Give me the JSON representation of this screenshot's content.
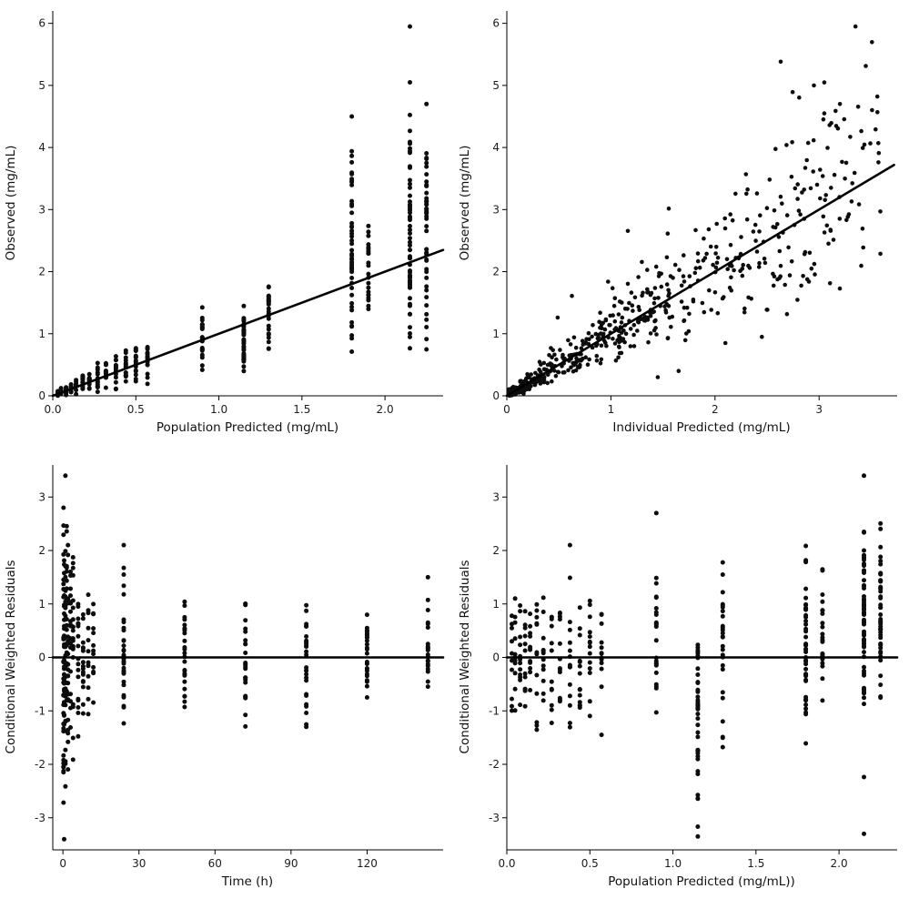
{
  "figure": {
    "background": "#ffffff",
    "point_color": "#0d0d0d",
    "line_color": "#000000",
    "axis_color": "#000000",
    "tick_color": "#1c1c1c"
  },
  "chart_data": [
    {
      "type": "scatter",
      "name": "observed-vs-population-predicted",
      "xlabel": "Population Predicted (mg/mL)",
      "ylabel": "Observed  (mg/mL)",
      "xlim": [
        0,
        2.35
      ],
      "ylim": [
        0,
        6.2
      ],
      "xticks": [
        0,
        0.5,
        1.0,
        1.5,
        2.0
      ],
      "xtick_labels": [
        "0.0",
        "0.5",
        "1.0",
        "1.5",
        "2.0"
      ],
      "yticks": [
        0,
        1,
        2,
        3,
        4,
        5,
        6
      ],
      "ytick_labels": [
        "0",
        "1",
        "2",
        "3",
        "4",
        "5",
        "6"
      ],
      "line": {
        "type": "identity",
        "x1": 0,
        "y1": 0,
        "x2": 2.35,
        "y2": 2.35
      },
      "chart": {
        "generator": "bands",
        "seed": 7,
        "point_r": 2.5,
        "bands": [
          {
            "x": 0.03,
            "n": 12,
            "mean": 0.04,
            "sd": 0.02,
            "min": 0.0,
            "max": 0.1
          },
          {
            "x": 0.05,
            "n": 14,
            "mean": 0.06,
            "sd": 0.03,
            "min": 0.0,
            "max": 0.15
          },
          {
            "x": 0.08,
            "n": 14,
            "mean": 0.09,
            "sd": 0.04,
            "min": 0.0,
            "max": 0.2
          },
          {
            "x": 0.11,
            "n": 14,
            "mean": 0.12,
            "sd": 0.05,
            "min": 0.01,
            "max": 0.25
          },
          {
            "x": 0.14,
            "n": 14,
            "mean": 0.15,
            "sd": 0.06,
            "min": 0.02,
            "max": 0.3
          },
          {
            "x": 0.18,
            "n": 14,
            "mean": 0.19,
            "sd": 0.07,
            "min": 0.03,
            "max": 0.38
          },
          {
            "x": 0.22,
            "n": 14,
            "mean": 0.23,
            "sd": 0.08,
            "min": 0.04,
            "max": 0.45
          },
          {
            "x": 0.27,
            "n": 14,
            "mean": 0.28,
            "sd": 0.1,
            "min": 0.05,
            "max": 0.55
          },
          {
            "x": 0.32,
            "n": 14,
            "mean": 0.34,
            "sd": 0.12,
            "min": 0.06,
            "max": 0.65
          },
          {
            "x": 0.38,
            "n": 16,
            "mean": 0.4,
            "sd": 0.14,
            "min": 0.08,
            "max": 0.78
          },
          {
            "x": 0.44,
            "n": 16,
            "mean": 0.46,
            "sd": 0.15,
            "min": 0.1,
            "max": 0.85
          },
          {
            "x": 0.5,
            "n": 16,
            "mean": 0.52,
            "sd": 0.16,
            "min": 0.12,
            "max": 0.9
          },
          {
            "x": 0.57,
            "n": 16,
            "mean": 0.6,
            "sd": 0.17,
            "min": 0.15,
            "max": 0.95
          },
          {
            "x": 0.9,
            "n": 22,
            "mean": 0.95,
            "sd": 0.3,
            "min": 0.35,
            "max": 1.75
          },
          {
            "x": 1.15,
            "n": 40,
            "mean": 0.85,
            "sd": 0.35,
            "min": 0.35,
            "max": 1.95
          },
          {
            "x": 1.3,
            "n": 26,
            "mean": 1.25,
            "sd": 0.3,
            "min": 0.6,
            "max": 1.9
          },
          {
            "x": 1.8,
            "n": 46,
            "mean": 2.1,
            "sd": 0.9,
            "min": 0.5,
            "max": 4.5
          },
          {
            "x": 1.9,
            "n": 22,
            "mean": 1.9,
            "sd": 0.5,
            "min": 0.85,
            "max": 2.9
          },
          {
            "x": 2.15,
            "n": 60,
            "mean": 2.5,
            "sd": 1.0,
            "min": 0.65,
            "max": 5.0
          },
          {
            "x": 2.25,
            "n": 46,
            "mean": 2.3,
            "sd": 1.0,
            "min": 0.6,
            "max": 4.7
          }
        ],
        "extra_points": [
          [
            2.15,
            5.95
          ],
          [
            2.15,
            5.05
          ],
          [
            1.8,
            4.5
          ],
          [
            2.25,
            4.7
          ]
        ]
      }
    },
    {
      "type": "scatter",
      "name": "observed-vs-individual-predicted",
      "xlabel": "Individual Predicted  (mg/mL)",
      "ylabel": "Observed  (mg/mL)",
      "xlim": [
        0,
        3.75
      ],
      "ylim": [
        0,
        6.2
      ],
      "xticks": [
        0,
        1,
        2,
        3
      ],
      "xtick_labels": [
        "0",
        "1",
        "2",
        "3"
      ],
      "yticks": [
        0,
        1,
        2,
        3,
        4,
        5,
        6
      ],
      "ytick_labels": [
        "0",
        "1",
        "2",
        "3",
        "4",
        "5",
        "6"
      ],
      "line": {
        "type": "identity",
        "x1": 0,
        "y1": 0,
        "x2": 3.72,
        "y2": 3.72
      },
      "chart": {
        "generator": "cloud",
        "seed": 13,
        "point_r": 2.3,
        "cloud": {
          "n": 640,
          "xmin": 0.02,
          "xmax": 3.6,
          "xpow": 1.7,
          "sigma": 0.27,
          "add": 0.04,
          "ymax": 6.0
        },
        "extra_points": [
          [
            3.35,
            5.95
          ],
          [
            2.95,
            5.0
          ],
          [
            3.2,
            4.7
          ],
          [
            3.05,
            4.55
          ],
          [
            1.65,
            0.4
          ],
          [
            2.1,
            0.85
          ],
          [
            2.45,
            0.95
          ],
          [
            1.45,
            0.3
          ]
        ]
      }
    },
    {
      "type": "scatter",
      "name": "cwres-vs-time",
      "xlabel": "Time (h)",
      "ylabel": "Conditional Weighted Residuals",
      "xlim": [
        -4,
        150
      ],
      "ylim": [
        -3.6,
        3.6
      ],
      "xticks": [
        0,
        30,
        60,
        90,
        120
      ],
      "xtick_labels": [
        "0",
        "30",
        "60",
        "90",
        "120"
      ],
      "yticks": [
        -3,
        -2,
        -1,
        0,
        1,
        2,
        3
      ],
      "ytick_labels": [
        "-3",
        "-2",
        "-1",
        "0",
        "1",
        "2",
        "3"
      ],
      "line": {
        "type": "zero",
        "x1": -4,
        "y1": 0,
        "x2": 150,
        "y2": 0
      },
      "chart": {
        "generator": "bands",
        "seed": 21,
        "point_r": 2.5,
        "bands": [
          {
            "x": 0.25,
            "n": 28,
            "mean": 0.0,
            "sd": 1.3,
            "min": -3.4,
            "max": 2.8
          },
          {
            "x": 0.5,
            "n": 28,
            "mean": 0.0,
            "sd": 1.2,
            "min": -3.3,
            "max": 2.8
          },
          {
            "x": 1,
            "n": 28,
            "mean": 0.1,
            "sd": 1.2,
            "min": -3.0,
            "max": 3.4
          },
          {
            "x": 1.5,
            "n": 24,
            "mean": 0.0,
            "sd": 1.1,
            "min": -2.8,
            "max": 2.6
          },
          {
            "x": 2,
            "n": 24,
            "mean": 0.0,
            "sd": 1.1,
            "min": -3.2,
            "max": 2.4
          },
          {
            "x": 3,
            "n": 20,
            "mean": 0.0,
            "sd": 1.0,
            "min": -2.6,
            "max": 2.2
          },
          {
            "x": 4,
            "n": 20,
            "mean": 0.0,
            "sd": 0.9,
            "min": -2.2,
            "max": 1.9
          },
          {
            "x": 6,
            "n": 18,
            "mean": 0.1,
            "sd": 0.8,
            "min": -1.6,
            "max": 1.5
          },
          {
            "x": 8,
            "n": 16,
            "mean": 0.0,
            "sd": 0.8,
            "min": -1.4,
            "max": 1.4
          },
          {
            "x": 10,
            "n": 14,
            "mean": 0.1,
            "sd": 0.7,
            "min": -1.2,
            "max": 1.4
          },
          {
            "x": 12,
            "n": 12,
            "mean": 0.0,
            "sd": 0.7,
            "min": -1.1,
            "max": 1.4
          },
          {
            "x": 24,
            "n": 30,
            "mean": 0.2,
            "sd": 0.8,
            "min": -1.25,
            "max": 2.1
          },
          {
            "x": 48,
            "n": 26,
            "mean": 0.1,
            "sd": 0.7,
            "min": -1.1,
            "max": 1.45
          },
          {
            "x": 72,
            "n": 26,
            "mean": 0.0,
            "sd": 0.7,
            "min": -1.3,
            "max": 1.3
          },
          {
            "x": 96,
            "n": 26,
            "mean": 0.0,
            "sd": 0.7,
            "min": -1.35,
            "max": 1.3
          },
          {
            "x": 120,
            "n": 26,
            "mean": 0.1,
            "sd": 0.6,
            "min": -0.8,
            "max": 1.05
          },
          {
            "x": 144,
            "n": 20,
            "mean": 0.3,
            "sd": 0.6,
            "min": -0.75,
            "max": 1.5
          }
        ],
        "extra_points": [
          [
            1,
            3.4
          ],
          [
            0.5,
            -3.4
          ],
          [
            0.25,
            2.8
          ],
          [
            24,
            2.1
          ],
          [
            144,
            1.5
          ]
        ]
      }
    },
    {
      "type": "scatter",
      "name": "cwres-vs-population-predicted",
      "xlabel": "Population Predicted  (mg/mL))",
      "ylabel": "Conditional Weighted Residuals",
      "xlim": [
        0,
        2.35
      ],
      "ylim": [
        -3.6,
        3.6
      ],
      "xticks": [
        0,
        0.5,
        1.0,
        1.5,
        2.0
      ],
      "xtick_labels": [
        "0.0",
        "0.5",
        "1.0",
        "1.5",
        "2.0"
      ],
      "yticks": [
        -3,
        -2,
        -1,
        0,
        1,
        2,
        3
      ],
      "ytick_labels": [
        "-3",
        "-2",
        "-1",
        "0",
        "1",
        "2",
        "3"
      ],
      "line": {
        "type": "zero",
        "x1": 0,
        "y1": 0,
        "x2": 2.35,
        "y2": 0
      },
      "chart": {
        "generator": "bands",
        "seed": 42,
        "point_r": 2.5,
        "bands": [
          {
            "x": 0.03,
            "n": 10,
            "mean": 0.0,
            "sd": 0.7,
            "min": -1.2,
            "max": 1.3
          },
          {
            "x": 0.05,
            "n": 12,
            "mean": 0.0,
            "sd": 0.7,
            "min": -1.2,
            "max": 1.4
          },
          {
            "x": 0.08,
            "n": 12,
            "mean": 0.0,
            "sd": 0.7,
            "min": -1.3,
            "max": 1.4
          },
          {
            "x": 0.11,
            "n": 12,
            "mean": 0.1,
            "sd": 0.7,
            "min": -1.2,
            "max": 1.4
          },
          {
            "x": 0.14,
            "n": 12,
            "mean": 0.0,
            "sd": 0.7,
            "min": -1.4,
            "max": 1.3
          },
          {
            "x": 0.18,
            "n": 12,
            "mean": 0.0,
            "sd": 0.75,
            "min": -1.5,
            "max": 1.4
          },
          {
            "x": 0.22,
            "n": 12,
            "mean": 0.0,
            "sd": 0.75,
            "min": -1.5,
            "max": 1.4
          },
          {
            "x": 0.27,
            "n": 12,
            "mean": -0.1,
            "sd": 0.8,
            "min": -1.7,
            "max": 1.5
          },
          {
            "x": 0.32,
            "n": 12,
            "mean": 0.0,
            "sd": 0.8,
            "min": -1.5,
            "max": 1.5
          },
          {
            "x": 0.38,
            "n": 14,
            "mean": 0.1,
            "sd": 0.8,
            "min": -1.5,
            "max": 2.1
          },
          {
            "x": 0.44,
            "n": 14,
            "mean": 0.0,
            "sd": 0.8,
            "min": -1.3,
            "max": 1.45
          },
          {
            "x": 0.5,
            "n": 14,
            "mean": 0.0,
            "sd": 0.8,
            "min": -1.6,
            "max": 1.45
          },
          {
            "x": 0.57,
            "n": 14,
            "mean": -0.1,
            "sd": 0.8,
            "min": -1.65,
            "max": 1.45
          },
          {
            "x": 0.9,
            "n": 22,
            "mean": 0.2,
            "sd": 0.7,
            "min": -1.05,
            "max": 2.7
          },
          {
            "x": 1.15,
            "n": 40,
            "mean": -1.0,
            "sd": 0.9,
            "min": -3.35,
            "max": 0.35
          },
          {
            "x": 1.3,
            "n": 26,
            "mean": 0.1,
            "sd": 0.9,
            "min": -1.9,
            "max": 2.0
          },
          {
            "x": 1.8,
            "n": 46,
            "mean": 0.0,
            "sd": 1.0,
            "min": -2.5,
            "max": 2.55
          },
          {
            "x": 1.9,
            "n": 22,
            "mean": 0.3,
            "sd": 0.9,
            "min": -1.9,
            "max": 2.5
          },
          {
            "x": 2.15,
            "n": 60,
            "mean": 0.8,
            "sd": 1.0,
            "min": -2.4,
            "max": 2.45
          },
          {
            "x": 2.25,
            "n": 46,
            "mean": 0.6,
            "sd": 0.9,
            "min": -1.4,
            "max": 2.8
          }
        ],
        "extra_points": [
          [
            2.15,
            3.4
          ],
          [
            2.15,
            -3.3
          ],
          [
            1.15,
            -3.35
          ],
          [
            0.9,
            2.7
          ],
          [
            0.38,
            2.1
          ]
        ]
      }
    }
  ]
}
